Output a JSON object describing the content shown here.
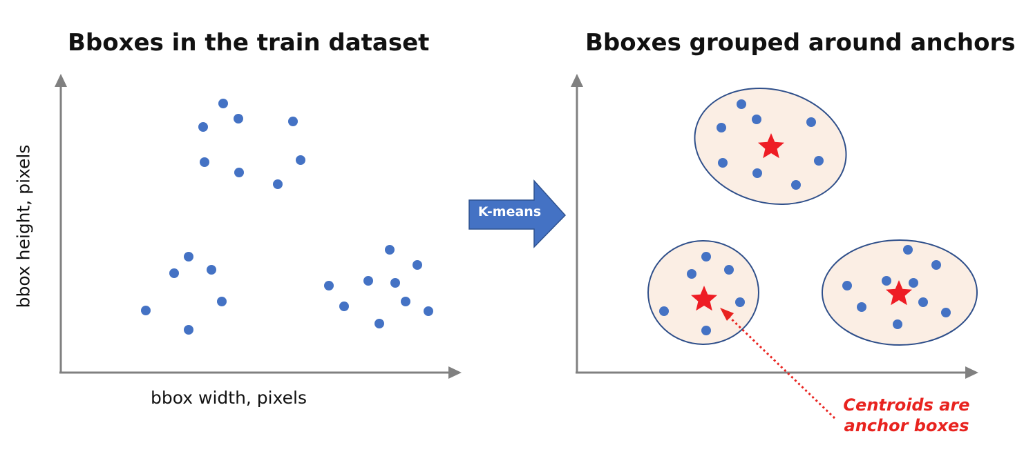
{
  "left_panel": {
    "title": "Bboxes in the train dataset",
    "xlabel": "bbox width, pixels",
    "ylabel": "bbox height, pixels"
  },
  "right_panel": {
    "title": "Bboxes grouped around anchors"
  },
  "transition_arrow": {
    "label": "K-means"
  },
  "callout": {
    "line1": "Centroids are",
    "line2": "anchor boxes"
  },
  "colors": {
    "point": "#4472c4",
    "axis": "#808080",
    "cluster_fill": "#fbeee4",
    "cluster_stroke": "#2f4f8a",
    "centroid": "#e8231f",
    "arrow_fill": "#4472c4"
  },
  "icons": {
    "centroid_marker": "star-icon",
    "data_point": "dot"
  }
}
